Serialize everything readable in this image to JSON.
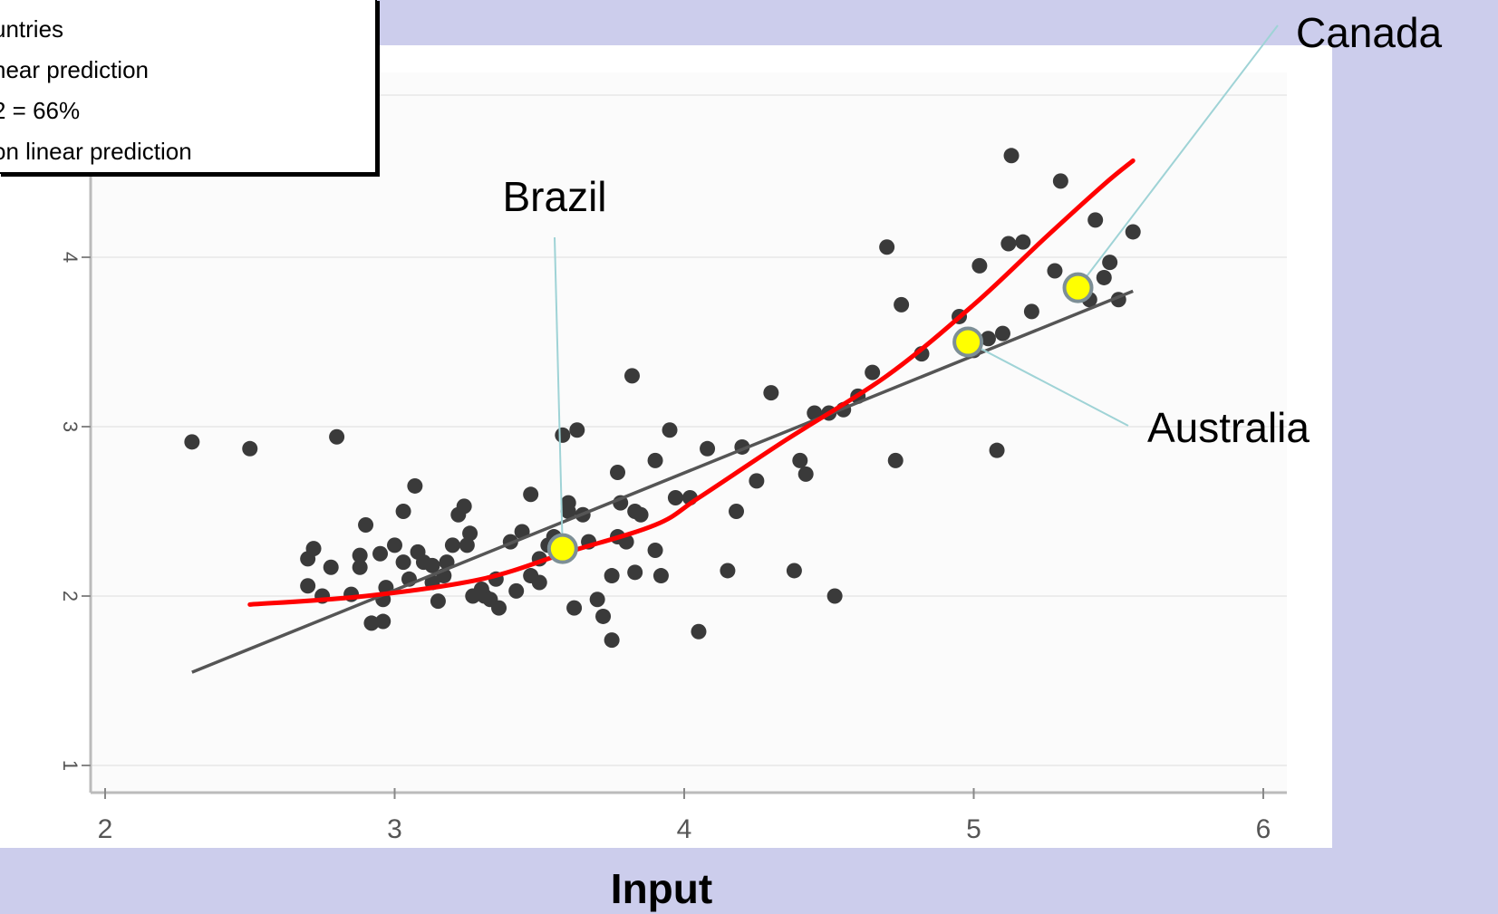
{
  "legend": {
    "lines": [
      "untries",
      "near prediction",
      "2 = 66%",
      "on linear prediction"
    ]
  },
  "chart_data": {
    "type": "scatter",
    "title": "",
    "xlabel": "Input",
    "ylabel": "",
    "xlim": [
      2,
      6
    ],
    "ylim": [
      0.85,
      4.9
    ],
    "xticks": [
      "2",
      "3",
      "4",
      "5",
      "6"
    ],
    "yticks": [
      "1",
      "2",
      "3",
      "4"
    ],
    "grid": true,
    "series": [
      {
        "kind": "points",
        "color": "#3a3a3a",
        "points": [
          [
            2.3,
            2.91
          ],
          [
            2.5,
            2.87
          ],
          [
            2.8,
            2.94
          ],
          [
            2.7,
            2.22
          ],
          [
            2.72,
            2.28
          ],
          [
            2.7,
            2.06
          ],
          [
            2.75,
            2.0
          ],
          [
            2.78,
            2.17
          ],
          [
            2.85,
            2.01
          ],
          [
            2.88,
            2.24
          ],
          [
            2.88,
            2.17
          ],
          [
            2.92,
            1.84
          ],
          [
            2.96,
            1.85
          ],
          [
            2.96,
            1.98
          ],
          [
            2.97,
            2.05
          ],
          [
            2.9,
            2.42
          ],
          [
            2.95,
            2.25
          ],
          [
            3.0,
            2.3
          ],
          [
            3.03,
            2.2
          ],
          [
            3.03,
            2.5
          ],
          [
            3.07,
            2.65
          ],
          [
            3.05,
            2.1
          ],
          [
            3.08,
            2.26
          ],
          [
            3.1,
            2.2
          ],
          [
            3.13,
            2.08
          ],
          [
            3.13,
            2.18
          ],
          [
            3.15,
            1.97
          ],
          [
            3.17,
            2.12
          ],
          [
            3.18,
            2.2
          ],
          [
            3.2,
            2.3
          ],
          [
            3.22,
            2.48
          ],
          [
            3.24,
            2.53
          ],
          [
            3.25,
            2.3
          ],
          [
            3.26,
            2.37
          ],
          [
            3.27,
            2.0
          ],
          [
            3.3,
            2.04
          ],
          [
            3.31,
            2.0
          ],
          [
            3.33,
            1.98
          ],
          [
            3.35,
            2.1
          ],
          [
            3.36,
            1.93
          ],
          [
            3.4,
            2.32
          ],
          [
            3.42,
            2.03
          ],
          [
            3.44,
            2.38
          ],
          [
            3.47,
            2.6
          ],
          [
            3.47,
            2.12
          ],
          [
            3.5,
            2.08
          ],
          [
            3.5,
            2.22
          ],
          [
            3.53,
            2.3
          ],
          [
            3.55,
            2.35
          ],
          [
            3.58,
            2.95
          ],
          [
            3.6,
            2.5
          ],
          [
            3.6,
            2.3
          ],
          [
            3.62,
            1.93
          ],
          [
            3.6,
            2.55
          ],
          [
            3.63,
            2.98
          ],
          [
            3.65,
            2.48
          ],
          [
            3.67,
            2.32
          ],
          [
            3.7,
            1.98
          ],
          [
            3.72,
            1.88
          ],
          [
            3.75,
            1.74
          ],
          [
            3.75,
            2.12
          ],
          [
            3.77,
            2.35
          ],
          [
            3.77,
            2.73
          ],
          [
            3.78,
            2.55
          ],
          [
            3.8,
            2.32
          ],
          [
            3.82,
            3.3
          ],
          [
            3.83,
            2.5
          ],
          [
            3.83,
            2.14
          ],
          [
            3.85,
            2.48
          ],
          [
            3.9,
            2.8
          ],
          [
            3.9,
            2.27
          ],
          [
            3.92,
            2.12
          ],
          [
            3.95,
            2.98
          ],
          [
            3.97,
            2.58
          ],
          [
            4.02,
            2.58
          ],
          [
            4.05,
            1.79
          ],
          [
            4.08,
            2.87
          ],
          [
            4.15,
            2.15
          ],
          [
            4.18,
            2.5
          ],
          [
            4.2,
            2.88
          ],
          [
            4.25,
            2.68
          ],
          [
            4.3,
            3.2
          ],
          [
            4.38,
            2.15
          ],
          [
            4.4,
            2.8
          ],
          [
            4.42,
            2.72
          ],
          [
            4.45,
            3.08
          ],
          [
            4.5,
            3.08
          ],
          [
            4.52,
            2.0
          ],
          [
            4.55,
            3.1
          ],
          [
            4.6,
            3.18
          ],
          [
            4.65,
            3.32
          ],
          [
            4.7,
            4.06
          ],
          [
            4.73,
            2.8
          ],
          [
            4.75,
            3.72
          ],
          [
            4.82,
            3.43
          ],
          [
            4.95,
            3.65
          ],
          [
            5.0,
            3.45
          ],
          [
            5.02,
            3.95
          ],
          [
            5.05,
            3.52
          ],
          [
            5.08,
            2.86
          ],
          [
            5.1,
            3.55
          ],
          [
            5.12,
            4.08
          ],
          [
            5.13,
            4.6
          ],
          [
            5.17,
            4.09
          ],
          [
            5.2,
            3.68
          ],
          [
            5.28,
            3.92
          ],
          [
            5.3,
            4.45
          ],
          [
            5.38,
            3.8
          ],
          [
            5.4,
            3.75
          ],
          [
            5.42,
            4.22
          ],
          [
            5.45,
            3.88
          ],
          [
            5.47,
            3.97
          ],
          [
            5.5,
            3.75
          ],
          [
            5.55,
            4.15
          ]
        ]
      },
      {
        "kind": "linear",
        "color": "#555555",
        "points": [
          [
            2.3,
            1.55
          ],
          [
            5.55,
            3.8
          ]
        ]
      },
      {
        "kind": "nonlinear",
        "color": "#ff0000",
        "points": [
          [
            2.5,
            1.95
          ],
          [
            2.9,
            2.0
          ],
          [
            3.3,
            2.1
          ],
          [
            3.6,
            2.26
          ],
          [
            3.9,
            2.42
          ],
          [
            4.05,
            2.58
          ],
          [
            4.35,
            2.92
          ],
          [
            4.7,
            3.3
          ],
          [
            5.0,
            3.72
          ],
          [
            5.25,
            4.12
          ],
          [
            5.45,
            4.43
          ],
          [
            5.55,
            4.57
          ]
        ]
      }
    ],
    "annotations": [
      {
        "label": "Brazil",
        "x": 3.58,
        "y": 2.28
      },
      {
        "label": "Australia",
        "x": 4.98,
        "y": 3.5
      },
      {
        "label": "Canada",
        "x": 5.36,
        "y": 3.82
      }
    ],
    "highlight_color": "#ffff00"
  }
}
